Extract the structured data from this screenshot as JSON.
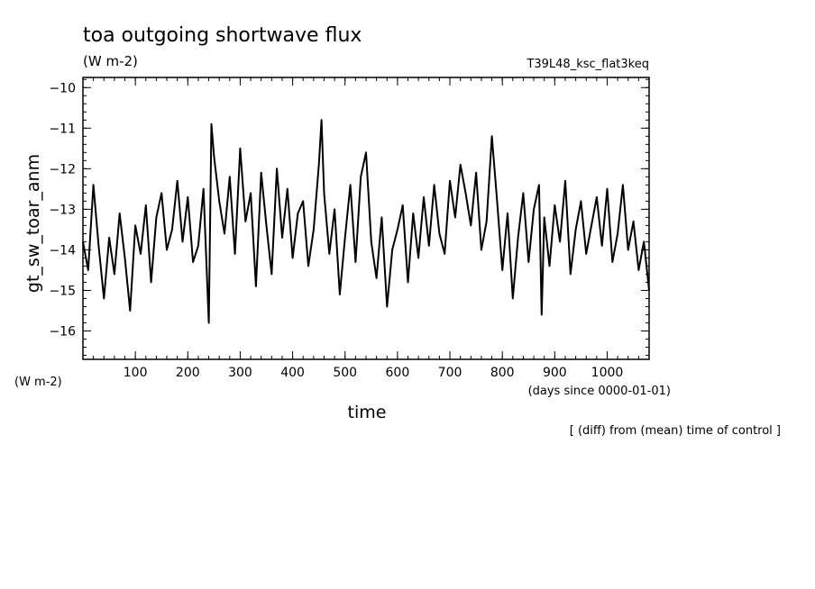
{
  "chart_data": {
    "type": "line",
    "title": "toa outgoing shortwave flux",
    "units": "(W m-2)",
    "run_label": "T39L48_ksc_flat3keq",
    "ylabel": "gt_sw_toar_anm",
    "yunits": "(W m-2)",
    "xlabel": "time",
    "xunits": "(days since 0000-01-01)",
    "note": "[ (diff) from (mean) time of control ]",
    "xlim": [
      0,
      1080
    ],
    "ylim": [
      -16.7,
      -9.75
    ],
    "xticks": [
      100,
      200,
      300,
      400,
      500,
      600,
      700,
      800,
      900,
      1000
    ],
    "yticks": [
      -10,
      -11,
      -12,
      -13,
      -14,
      -15,
      -16
    ],
    "series": [
      {
        "x": [
          0,
          10,
          20,
          30,
          40,
          50,
          60,
          70,
          80,
          90,
          100,
          110,
          120,
          130,
          140,
          150,
          160,
          170,
          180,
          190,
          200,
          210,
          220,
          230,
          240,
          245,
          250,
          260,
          270,
          280,
          290,
          300,
          310,
          320,
          330,
          340,
          350,
          360,
          370,
          380,
          390,
          400,
          410,
          420,
          430,
          440,
          450,
          455,
          460,
          470,
          480,
          490,
          500,
          510,
          520,
          530,
          540,
          550,
          560,
          570,
          580,
          590,
          600,
          610,
          620,
          630,
          640,
          650,
          660,
          670,
          680,
          690,
          700,
          710,
          720,
          730,
          740,
          750,
          760,
          770,
          780,
          790,
          800,
          810,
          820,
          830,
          840,
          850,
          860,
          870,
          875,
          880,
          890,
          900,
          910,
          920,
          930,
          940,
          950,
          960,
          970,
          980,
          990,
          1000,
          1010,
          1020,
          1030,
          1040,
          1050,
          1060,
          1070,
          1080
        ],
        "y": [
          -13.8,
          -14.5,
          -12.4,
          -13.9,
          -15.2,
          -13.7,
          -14.6,
          -13.1,
          -14.2,
          -15.5,
          -13.4,
          -14.1,
          -12.9,
          -14.8,
          -13.2,
          -12.6,
          -14.0,
          -13.5,
          -12.3,
          -13.8,
          -12.7,
          -14.3,
          -13.9,
          -12.5,
          -15.8,
          -10.9,
          -11.7,
          -12.8,
          -13.6,
          -12.2,
          -14.1,
          -11.5,
          -13.3,
          -12.6,
          -14.9,
          -12.1,
          -13.4,
          -14.6,
          -12.0,
          -13.7,
          -12.5,
          -14.2,
          -13.1,
          -12.8,
          -14.4,
          -13.5,
          -11.9,
          -10.8,
          -12.6,
          -14.1,
          -13.0,
          -15.1,
          -13.7,
          -12.4,
          -14.3,
          -12.2,
          -11.6,
          -13.8,
          -14.7,
          -13.2,
          -15.4,
          -14.0,
          -13.5,
          -12.9,
          -14.8,
          -13.1,
          -14.2,
          -12.7,
          -13.9,
          -12.4,
          -13.6,
          -14.1,
          -12.3,
          -13.2,
          -11.9,
          -12.6,
          -13.4,
          -12.1,
          -14.0,
          -13.3,
          -11.2,
          -12.8,
          -14.5,
          -13.1,
          -15.2,
          -13.7,
          -12.6,
          -14.3,
          -13.0,
          -12.4,
          -15.6,
          -13.2,
          -14.4,
          -12.9,
          -13.8,
          -12.3,
          -14.6,
          -13.5,
          -12.8,
          -14.1,
          -13.4,
          -12.7,
          -13.9,
          -12.5,
          -14.3,
          -13.6,
          -12.4,
          -14.0,
          -13.3,
          -14.5,
          -13.8,
          -15.0
        ]
      }
    ]
  }
}
